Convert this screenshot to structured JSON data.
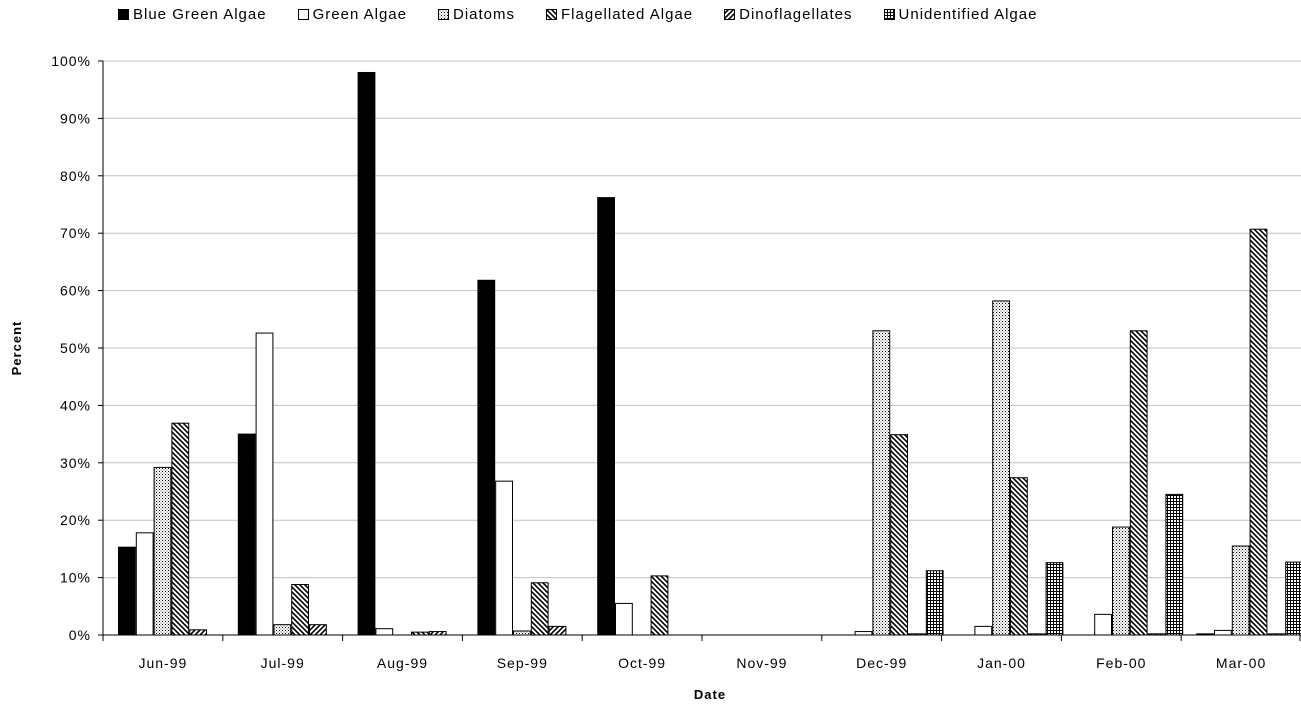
{
  "chart_data": {
    "type": "bar",
    "title": "",
    "xlabel": "Date",
    "ylabel": "Percent",
    "ylim": [
      0,
      100
    ],
    "yticks": [
      "0%",
      "10%",
      "20%",
      "30%",
      "40%",
      "50%",
      "60%",
      "70%",
      "80%",
      "90%",
      "100%"
    ],
    "grid": true,
    "legend_position": "top",
    "categories": [
      "Jun-99",
      "Jul-99",
      "Aug-99",
      "Sep-99",
      "Oct-99",
      "Nov-99",
      "Dec-99",
      "Jan-00",
      "Feb-00",
      "Mar-00"
    ],
    "series": [
      {
        "name": "Blue Green Algae",
        "pattern": "solid-black",
        "values": [
          15.3,
          35.0,
          98.0,
          61.8,
          76.2,
          0,
          0,
          0,
          0,
          0.2
        ]
      },
      {
        "name": "Green Algae",
        "pattern": "white",
        "values": [
          17.8,
          52.6,
          1.1,
          26.8,
          5.5,
          0,
          0.6,
          1.5,
          3.6,
          0.8
        ]
      },
      {
        "name": "Diatoms",
        "pattern": "dotted",
        "values": [
          29.2,
          1.8,
          0,
          0.7,
          0,
          0,
          53.0,
          58.2,
          18.8,
          15.5
        ]
      },
      {
        "name": "Flagellated Algae",
        "pattern": "back-diagonal",
        "values": [
          36.9,
          8.8,
          0.5,
          9.1,
          10.3,
          0,
          34.9,
          27.4,
          53.0,
          70.7
        ]
      },
      {
        "name": "Dinoflagellates",
        "pattern": "forward-diagonal",
        "values": [
          0.9,
          1.8,
          0.6,
          1.5,
          0,
          0,
          0.2,
          0.2,
          0.2,
          0.2
        ]
      },
      {
        "name": "Unidentified Algae",
        "pattern": "grid",
        "values": [
          0,
          0,
          0,
          0,
          0,
          0,
          11.2,
          12.6,
          24.5,
          12.7
        ]
      }
    ]
  }
}
